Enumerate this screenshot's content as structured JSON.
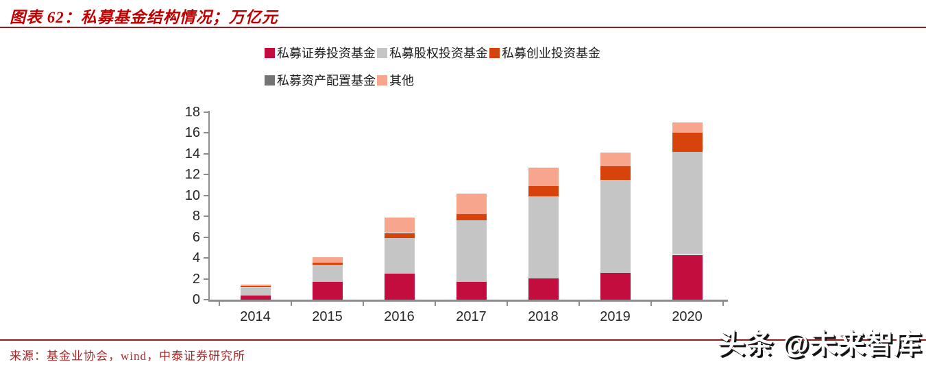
{
  "header": {
    "title": "图表 62：私募基金结构情况；万亿元"
  },
  "footer": {
    "source": "来源：基金业协会，wind，中泰证券研究所",
    "watermark": "头条 @未来智库"
  },
  "colors": {
    "title_red": "#C00000",
    "rule_red": "#8E1B1E",
    "source_red": "#A6282B",
    "axis_gray": "#8C8C8C",
    "tick_label": "#262626"
  },
  "chart_data": {
    "type": "bar",
    "stacked": true,
    "grid": false,
    "legend_position": "top",
    "title": "私募基金结构情况；万亿元",
    "xlabel": "",
    "ylabel": "",
    "ylim": [
      0,
      18
    ],
    "yticks": [
      0,
      2,
      4,
      6,
      8,
      10,
      12,
      14,
      16,
      18
    ],
    "categories": [
      "2014",
      "2015",
      "2016",
      "2017",
      "2018",
      "2019",
      "2020"
    ],
    "series": [
      {
        "name": "私募证券投资基金",
        "color": "#C30D3E",
        "values": [
          0.4,
          1.7,
          2.5,
          1.7,
          2.05,
          2.55,
          4.3
        ]
      },
      {
        "name": "私募股权投资基金",
        "color": "#C5C5C5",
        "values": [
          0.75,
          1.65,
          3.4,
          5.95,
          7.85,
          8.95,
          9.9
        ]
      },
      {
        "name": "私募创业投资基金",
        "color": "#D8430B",
        "values": [
          0.15,
          0.2,
          0.5,
          0.55,
          1.0,
          1.3,
          1.85
        ]
      },
      {
        "name": "私募资产配置基金",
        "color": "#747474",
        "values": [
          0,
          0,
          0,
          0,
          0,
          0,
          0
        ]
      },
      {
        "name": "其他",
        "color": "#F7A58C",
        "values": [
          0.15,
          0.55,
          1.5,
          2.0,
          1.8,
          1.3,
          0.95
        ]
      }
    ],
    "legend_rows": [
      [
        0,
        1,
        2
      ],
      [
        3,
        4
      ]
    ]
  }
}
